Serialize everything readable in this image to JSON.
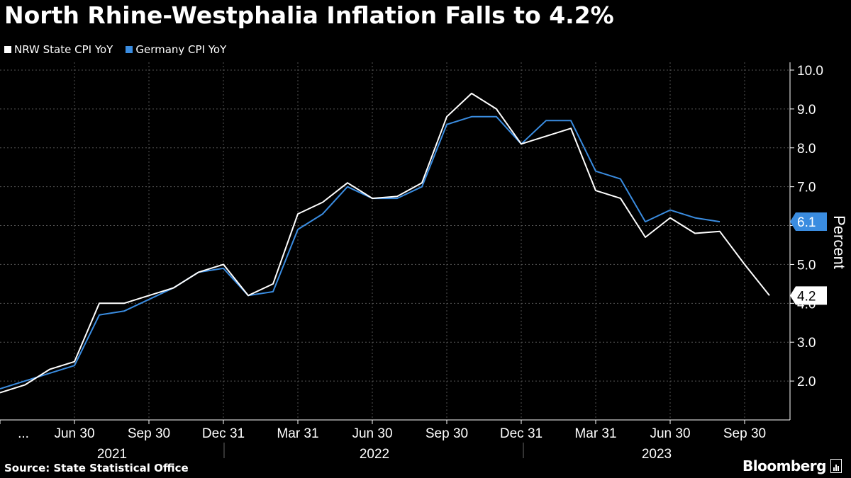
{
  "header": {
    "title": "North Rhine-Westphalia Inflation Falls to 4.2%"
  },
  "colors": {
    "background": "#000000",
    "nrw": "#ffffff",
    "germany": "#3a8ce0",
    "grid": "#555555"
  },
  "chart_data": {
    "type": "line",
    "title": "North Rhine-Westphalia Inflation Falls to 4.2%",
    "ylabel": "Percent",
    "xlabel": "",
    "ylim": [
      1.0,
      10.2
    ],
    "yticks": [
      "2.0",
      "3.0",
      "4.0",
      "5.0",
      "6.0",
      "7.0",
      "8.0",
      "9.0",
      "10.0"
    ],
    "xticks": [
      "...",
      "Jun 30",
      "Sep 30",
      "Dec 31",
      "Mar 31",
      "Jun 30",
      "Sep 30",
      "Dec 31",
      "Mar 31",
      "Jun 30",
      "Sep 30"
    ],
    "year_labels": [
      "2021",
      "2022",
      "2023"
    ],
    "grid": true,
    "legend_position": "top-left",
    "x": [
      "2021-03",
      "2021-04",
      "2021-05",
      "2021-06",
      "2021-07",
      "2021-08",
      "2021-09",
      "2021-10",
      "2021-11",
      "2021-12",
      "2022-01",
      "2022-02",
      "2022-03",
      "2022-04",
      "2022-05",
      "2022-06",
      "2022-07",
      "2022-08",
      "2022-09",
      "2022-10",
      "2022-11",
      "2022-12",
      "2023-01",
      "2023-02",
      "2023-03",
      "2023-04",
      "2023-05",
      "2023-06",
      "2023-07",
      "2023-08",
      "2023-09",
      "2023-10"
    ],
    "series": [
      {
        "name": "NRW State CPI YoY",
        "color": "#ffffff",
        "values": [
          1.7,
          1.9,
          2.3,
          2.5,
          4.0,
          4.0,
          4.2,
          4.4,
          4.8,
          5.0,
          4.2,
          4.5,
          6.3,
          6.6,
          7.1,
          6.7,
          6.75,
          7.1,
          8.8,
          9.4,
          9.0,
          8.1,
          8.3,
          8.5,
          6.9,
          6.7,
          5.7,
          6.2,
          5.8,
          5.85,
          5.0,
          4.2
        ]
      },
      {
        "name": "Germany CPI YoY",
        "color": "#3a8ce0",
        "values": [
          1.8,
          2.0,
          2.2,
          2.4,
          3.7,
          3.8,
          4.1,
          4.4,
          4.8,
          4.9,
          4.2,
          4.3,
          5.9,
          6.3,
          7.0,
          6.7,
          6.7,
          7.0,
          8.6,
          8.8,
          8.8,
          8.1,
          8.7,
          8.7,
          7.4,
          7.2,
          6.1,
          6.4,
          6.2,
          6.1,
          null,
          null
        ]
      }
    ],
    "last_value_labels": [
      {
        "series": "Germany CPI YoY",
        "text": "6.1",
        "value": 6.1
      },
      {
        "series": "NRW State CPI YoY",
        "text": "4.2",
        "value": 4.2
      }
    ]
  },
  "footer": {
    "source": "Source: State Statistical Office",
    "brand": "Bloomberg"
  }
}
